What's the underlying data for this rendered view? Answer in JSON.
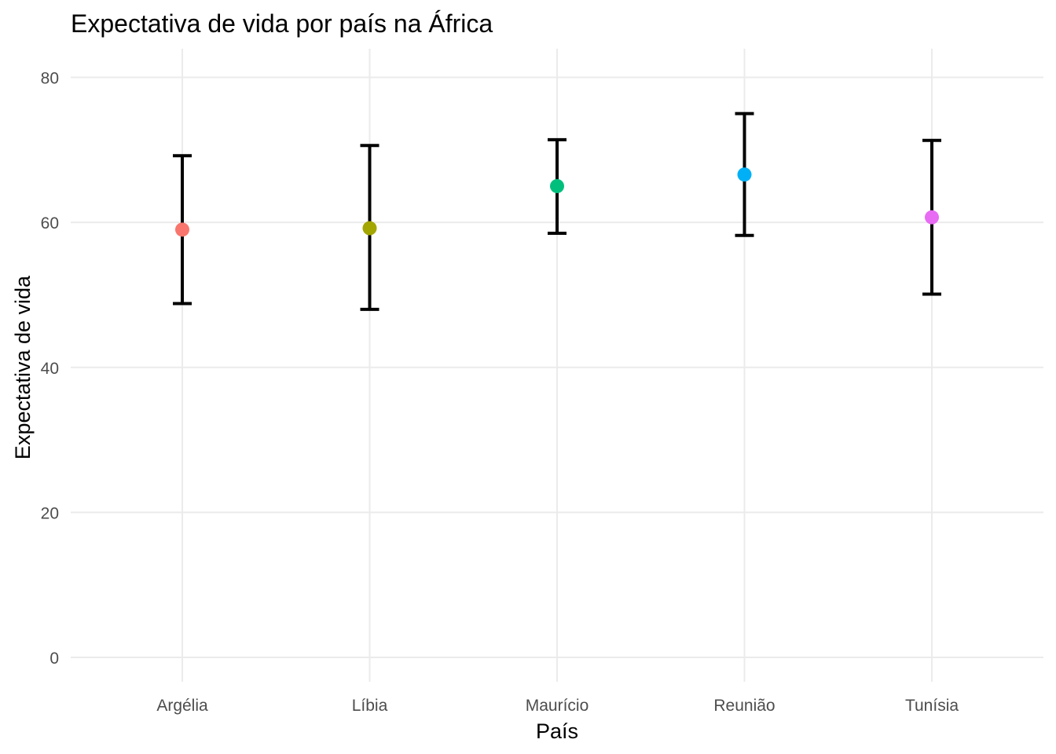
{
  "chart_data": {
    "type": "scatter",
    "title": "Expectativa de vida por país na África",
    "xlabel": "País",
    "ylabel": "Expectativa de vida",
    "categories": [
      "Argélia",
      "Líbia",
      "Maurício",
      "Reunião",
      "Tunísia"
    ],
    "values": [
      59.0,
      59.2,
      65.0,
      66.6,
      60.7
    ],
    "error_low": [
      48.8,
      48.0,
      58.5,
      58.2,
      50.1
    ],
    "error_high": [
      69.2,
      70.6,
      71.4,
      75.0,
      71.3
    ],
    "colors": [
      "#F8766D",
      "#A3A500",
      "#00BF7D",
      "#00B0F6",
      "#E76BF3"
    ],
    "yticks": [
      0,
      20,
      40,
      60,
      80
    ],
    "ylim": [
      -3,
      84
    ],
    "grid": true,
    "legend": "none"
  }
}
